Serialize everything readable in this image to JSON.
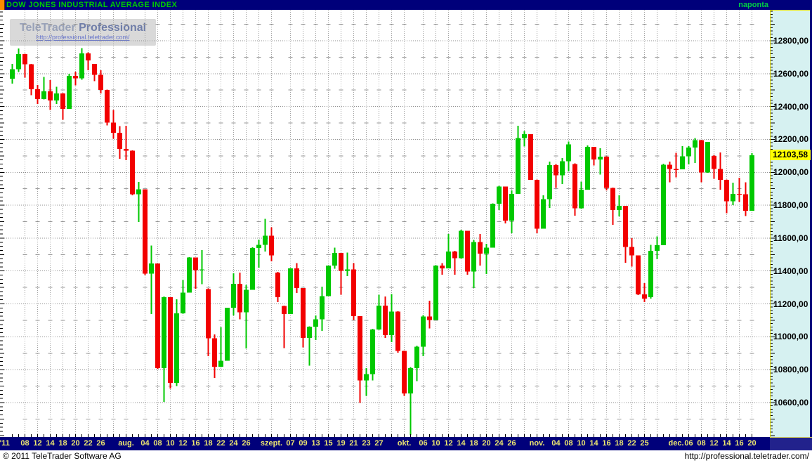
{
  "title_bar": {
    "title": "DOW JONES INDUSTRIAL AVERAGE INDEX",
    "interval_label": "naponta"
  },
  "logo": {
    "name": "TeleTrader",
    "product": "Professional",
    "url": "http://professional.teletrader.com/"
  },
  "price_axis": {
    "labels": [
      {
        "text": "12800,00",
        "value": 12800
      },
      {
        "text": "12600,00",
        "value": 12600
      },
      {
        "text": "12400,00",
        "value": 12400
      },
      {
        "text": "12200,00",
        "value": 12200
      },
      {
        "text": "12000,00",
        "value": 12000
      },
      {
        "text": "11800,00",
        "value": 11800
      },
      {
        "text": "11600,00",
        "value": 11600
      },
      {
        "text": "11400,00",
        "value": 11400
      },
      {
        "text": "11200,00",
        "value": 11200
      },
      {
        "text": "11000,00",
        "value": 11000
      },
      {
        "text": "10800,00",
        "value": 10800
      },
      {
        "text": "10600,00",
        "value": 10600
      }
    ],
    "current_price_text": "12103,58",
    "current_price_value": 12103.58
  },
  "date_axis": {
    "labels": [
      {
        "text": "'11",
        "i": -1.2
      },
      {
        "text": "08",
        "i": 2
      },
      {
        "text": "12",
        "i": 4
      },
      {
        "text": "14",
        "i": 6
      },
      {
        "text": "18",
        "i": 8
      },
      {
        "text": "20",
        "i": 10
      },
      {
        "text": "22",
        "i": 12
      },
      {
        "text": "26",
        "i": 14
      },
      {
        "text": "aug.",
        "i": 18
      },
      {
        "text": "04",
        "i": 21
      },
      {
        "text": "08",
        "i": 23
      },
      {
        "text": "10",
        "i": 25
      },
      {
        "text": "12",
        "i": 27
      },
      {
        "text": "16",
        "i": 29
      },
      {
        "text": "18",
        "i": 31
      },
      {
        "text": "22",
        "i": 33
      },
      {
        "text": "24",
        "i": 35
      },
      {
        "text": "26",
        "i": 37
      },
      {
        "text": "szept.",
        "i": 41
      },
      {
        "text": "07",
        "i": 44
      },
      {
        "text": "09",
        "i": 46
      },
      {
        "text": "13",
        "i": 48
      },
      {
        "text": "15",
        "i": 50
      },
      {
        "text": "19",
        "i": 52
      },
      {
        "text": "21",
        "i": 54
      },
      {
        "text": "23",
        "i": 56
      },
      {
        "text": "27",
        "i": 58
      },
      {
        "text": "okt.",
        "i": 62
      },
      {
        "text": "06",
        "i": 65
      },
      {
        "text": "10",
        "i": 67
      },
      {
        "text": "12",
        "i": 69
      },
      {
        "text": "14",
        "i": 71
      },
      {
        "text": "18",
        "i": 73
      },
      {
        "text": "20",
        "i": 75
      },
      {
        "text": "24",
        "i": 77
      },
      {
        "text": "26",
        "i": 79
      },
      {
        "text": "nov.",
        "i": 83
      },
      {
        "text": "04",
        "i": 86
      },
      {
        "text": "08",
        "i": 88
      },
      {
        "text": "10",
        "i": 90
      },
      {
        "text": "14",
        "i": 92
      },
      {
        "text": "16",
        "i": 94
      },
      {
        "text": "18",
        "i": 96
      },
      {
        "text": "22",
        "i": 98
      },
      {
        "text": "25",
        "i": 100
      },
      {
        "text": "dec.",
        "i": 105
      },
      {
        "text": "06",
        "i": 107
      },
      {
        "text": "08",
        "i": 109
      },
      {
        "text": "12",
        "i": 111
      },
      {
        "text": "14",
        "i": 113
      },
      {
        "text": "16",
        "i": 115
      },
      {
        "text": "20",
        "i": 117
      }
    ]
  },
  "status_bar": {
    "copyright": "© 2011 TeleTrader Software AG",
    "url": "http://professional.teletrader.com/"
  },
  "colors": {
    "up": "#00c800",
    "down": "#f20000",
    "titlebar_bg": "#00007a",
    "title_text": "#00cc00",
    "axis_bg": "#d6f1f1",
    "current_price_bg": "#ffff00",
    "date_text": "#ece670",
    "grid": "#8f8f8f"
  },
  "chart_data": {
    "type": "candlestick",
    "title": "DOW JONES INDUSTRIAL AVERAGE INDEX",
    "interval": "naponta",
    "last_price": 12103.58,
    "ylabel_format": "0,00",
    "ylim": [
      10390,
      12990
    ],
    "grid": true,
    "columns": [
      "date",
      "open",
      "high",
      "low",
      "close"
    ],
    "ohlc": [
      [
        "07.06",
        12570,
        12660,
        12540,
        12626
      ],
      [
        "07.07",
        12626,
        12754,
        12610,
        12719
      ],
      [
        "07.08",
        12719,
        12720,
        12575,
        12657
      ],
      [
        "07.11",
        12657,
        12658,
        12470,
        12505
      ],
      [
        "07.12",
        12505,
        12530,
        12416,
        12446
      ],
      [
        "07.13",
        12446,
        12580,
        12444,
        12492
      ],
      [
        "07.14",
        12492,
        12560,
        12380,
        12437
      ],
      [
        "07.15",
        12437,
        12520,
        12415,
        12480
      ],
      [
        "07.18",
        12480,
        12481,
        12320,
        12385
      ],
      [
        "07.19",
        12385,
        12600,
        12385,
        12587
      ],
      [
        "07.20",
        12587,
        12612,
        12528,
        12572
      ],
      [
        "07.21",
        12572,
        12755,
        12562,
        12724
      ],
      [
        "07.22",
        12724,
        12730,
        12620,
        12681
      ],
      [
        "07.25",
        12658,
        12660,
        12555,
        12593
      ],
      [
        "07.26",
        12593,
        12620,
        12480,
        12501
      ],
      [
        "07.27",
        12501,
        12503,
        12285,
        12303
      ],
      [
        "07.28",
        12303,
        12380,
        12205,
        12240
      ],
      [
        "07.29",
        12240,
        12282,
        12083,
        12143
      ],
      [
        "08.01",
        12143,
        12283,
        12073,
        12132
      ],
      [
        "08.02",
        12132,
        12134,
        11860,
        11867
      ],
      [
        "08.03",
        11867,
        11941,
        11698,
        11896
      ],
      [
        "08.04",
        11896,
        11894,
        11375,
        11384
      ],
      [
        "08.05",
        11384,
        11555,
        11139,
        11445
      ],
      [
        "08.08",
        11445,
        11434,
        10805,
        10810
      ],
      [
        "08.09",
        10810,
        11244,
        10604,
        11240
      ],
      [
        "08.10",
        11240,
        11241,
        10686,
        10720
      ],
      [
        "08.11",
        10720,
        11228,
        10700,
        11143
      ],
      [
        "08.12",
        11143,
        11346,
        11141,
        11269
      ],
      [
        "08.15",
        11269,
        11484,
        11269,
        11482
      ],
      [
        "08.16",
        11482,
        11483,
        11292,
        11406
      ],
      [
        "08.17",
        11406,
        11527,
        11320,
        11410
      ],
      [
        "08.18",
        11290,
        11295,
        10881,
        10991
      ],
      [
        "08.19",
        10991,
        11015,
        10749,
        10818
      ],
      [
        "08.22",
        10818,
        11060,
        10815,
        10855
      ],
      [
        "08.23",
        10855,
        11177,
        10854,
        11177
      ],
      [
        "08.24",
        11177,
        11386,
        11130,
        11321
      ],
      [
        "08.25",
        11321,
        11390,
        11106,
        11150
      ],
      [
        "08.26",
        11150,
        11316,
        10930,
        11285
      ],
      [
        "08.29",
        11285,
        11545,
        11285,
        11539
      ],
      [
        "08.30",
        11539,
        11592,
        11420,
        11560
      ],
      [
        "08.31",
        11560,
        11717,
        11518,
        11614
      ],
      [
        "09.01",
        11614,
        11665,
        11458,
        11494
      ],
      [
        "09.02",
        11390,
        11394,
        11211,
        11240
      ],
      [
        "09.06",
        11188,
        11190,
        10932,
        11139
      ],
      [
        "09.07",
        11139,
        11419,
        11139,
        11415
      ],
      [
        "09.08",
        11415,
        11448,
        11266,
        11296
      ],
      [
        "09.09",
        11296,
        11297,
        10936,
        10992
      ],
      [
        "09.12",
        10992,
        11063,
        10824,
        11061
      ],
      [
        "09.13",
        11061,
        11130,
        10980,
        11106
      ],
      [
        "09.14",
        11106,
        11305,
        11035,
        11247
      ],
      [
        "09.15",
        11247,
        11434,
        11247,
        11433
      ],
      [
        "09.16",
        11433,
        11543,
        11413,
        11509
      ],
      [
        "09.19",
        11509,
        11510,
        11255,
        11401
      ],
      [
        "09.20",
        11401,
        11512,
        11370,
        11409
      ],
      [
        "09.21",
        11409,
        11447,
        11101,
        11125
      ],
      [
        "09.22",
        11125,
        11126,
        10597,
        10734
      ],
      [
        "09.23",
        10734,
        10810,
        10640,
        10772
      ],
      [
        "09.26",
        10772,
        11048,
        10734,
        11044
      ],
      [
        "09.27",
        11044,
        11255,
        11043,
        11190
      ],
      [
        "09.28",
        11190,
        11246,
        10993,
        11011
      ],
      [
        "09.29",
        11011,
        11260,
        10968,
        11154
      ],
      [
        "09.30",
        11154,
        11155,
        10904,
        10913
      ],
      [
        "10.03",
        10913,
        10916,
        10640,
        10655
      ],
      [
        "10.04",
        10655,
        10816,
        10404,
        10809
      ],
      [
        "10.05",
        10809,
        10945,
        10730,
        10940
      ],
      [
        "10.06",
        10940,
        11131,
        10881,
        11123
      ],
      [
        "10.07",
        11123,
        11220,
        11050,
        11103
      ],
      [
        "10.10",
        11103,
        11435,
        11103,
        11433
      ],
      [
        "10.11",
        11433,
        11447,
        11378,
        11416
      ],
      [
        "10.12",
        11416,
        11625,
        11416,
        11519
      ],
      [
        "10.13",
        11519,
        11523,
        11378,
        11478
      ],
      [
        "10.14",
        11478,
        11650,
        11476,
        11644
      ],
      [
        "10.17",
        11644,
        11645,
        11377,
        11397
      ],
      [
        "10.18",
        11397,
        11590,
        11296,
        11577
      ],
      [
        "10.19",
        11577,
        11625,
        11434,
        11505
      ],
      [
        "10.20",
        11505,
        11566,
        11381,
        11541
      ],
      [
        "10.21",
        11541,
        11812,
        11541,
        11809
      ],
      [
        "10.24",
        11809,
        11917,
        11770,
        11913
      ],
      [
        "10.25",
        11913,
        11914,
        11690,
        11706
      ],
      [
        "10.26",
        11706,
        11891,
        11630,
        11869
      ],
      [
        "10.27",
        11869,
        12284,
        11869,
        12208
      ],
      [
        "10.28",
        12208,
        12251,
        12158,
        12231
      ],
      [
        "10.31",
        12231,
        12232,
        11954,
        11955
      ],
      [
        "11.01",
        11955,
        11956,
        11630,
        11658
      ],
      [
        "11.02",
        11658,
        11860,
        11657,
        11836
      ],
      [
        "11.03",
        11836,
        12066,
        11784,
        12044
      ],
      [
        "11.04",
        12044,
        12051,
        11906,
        11983
      ],
      [
        "11.07",
        11983,
        12086,
        11929,
        12068
      ],
      [
        "11.08",
        12068,
        12186,
        12005,
        12170
      ],
      [
        "11.09",
        12050,
        12055,
        11736,
        11781
      ],
      [
        "11.10",
        11781,
        11944,
        11780,
        11894
      ],
      [
        "11.11",
        11894,
        12163,
        11894,
        12154
      ],
      [
        "11.14",
        12154,
        12155,
        12042,
        12079
      ],
      [
        "11.15",
        12079,
        12146,
        11986,
        12096
      ],
      [
        "11.16",
        12096,
        12097,
        11890,
        11906
      ],
      [
        "11.17",
        11906,
        11908,
        11680,
        11771
      ],
      [
        "11.18",
        11771,
        11860,
        11731,
        11796
      ],
      [
        "11.21",
        11796,
        11797,
        11451,
        11547
      ],
      [
        "11.22",
        11547,
        11600,
        11426,
        11494
      ],
      [
        "11.23",
        11494,
        11495,
        11254,
        11258
      ],
      [
        "11.25",
        11258,
        11326,
        11211,
        11232
      ],
      [
        "11.28",
        11240,
        11560,
        11232,
        11523
      ],
      [
        "11.29",
        11523,
        11610,
        11472,
        11556
      ],
      [
        "11.30",
        11556,
        12052,
        11556,
        12046
      ],
      [
        "12.01",
        12046,
        12066,
        11940,
        12020
      ],
      [
        "12.02",
        12020,
        12118,
        11969,
        12019
      ],
      [
        "12.05",
        12019,
        12160,
        12018,
        12098
      ],
      [
        "12.06",
        12098,
        12160,
        12048,
        12150
      ],
      [
        "12.07",
        12150,
        12209,
        12057,
        12196
      ],
      [
        "12.08",
        12196,
        12197,
        11940,
        11998
      ],
      [
        "12.09",
        11998,
        12184,
        11997,
        12184
      ],
      [
        "12.12",
        12100,
        12105,
        11960,
        12021
      ],
      [
        "12.13",
        12021,
        12120,
        11895,
        11955
      ],
      [
        "12.14",
        11955,
        11956,
        11751,
        11823
      ],
      [
        "12.15",
        11823,
        11937,
        11800,
        11869
      ],
      [
        "12.16",
        11869,
        11967,
        11820,
        11866
      ],
      [
        "12.19",
        11866,
        11940,
        11735,
        11766
      ],
      [
        "12.20",
        11766,
        12117,
        11766,
        12103.58
      ]
    ]
  }
}
